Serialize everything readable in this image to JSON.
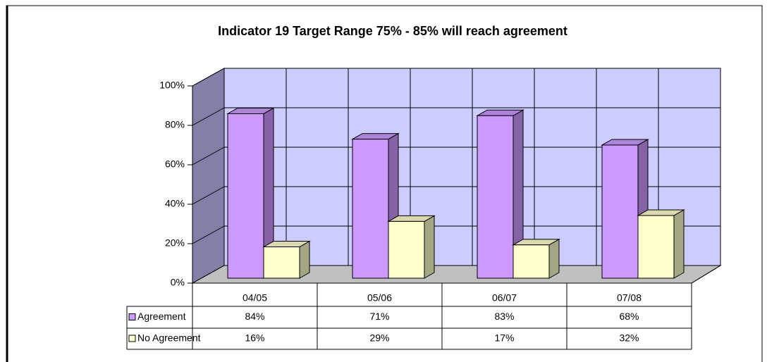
{
  "chart_data": {
    "type": "bar3d",
    "title": "Indicator 19 Target Range 75%  - 85%  will reach agreement",
    "categories": [
      "04/05",
      "05/06",
      "06/07",
      "07/08"
    ],
    "series": [
      {
        "name": "Agreement",
        "color": "#cc99ff",
        "values": [
          84,
          71,
          83,
          68
        ],
        "value_labels": [
          "84%",
          "71%",
          "83%",
          "68%"
        ]
      },
      {
        "name": "No Agreement",
        "color": "#ffffcc",
        "values": [
          16,
          29,
          17,
          32
        ],
        "value_labels": [
          "16%",
          "29%",
          "17%",
          "32%"
        ]
      }
    ],
    "ylim": [
      0,
      100
    ],
    "yticks": [
      {
        "value": 0,
        "label": "0%"
      },
      {
        "value": 20,
        "label": "20%"
      },
      {
        "value": 40,
        "label": "40%"
      },
      {
        "value": 60,
        "label": "60%"
      },
      {
        "value": 80,
        "label": "80%"
      },
      {
        "value": 100,
        "label": "100%"
      }
    ],
    "grid": true
  }
}
